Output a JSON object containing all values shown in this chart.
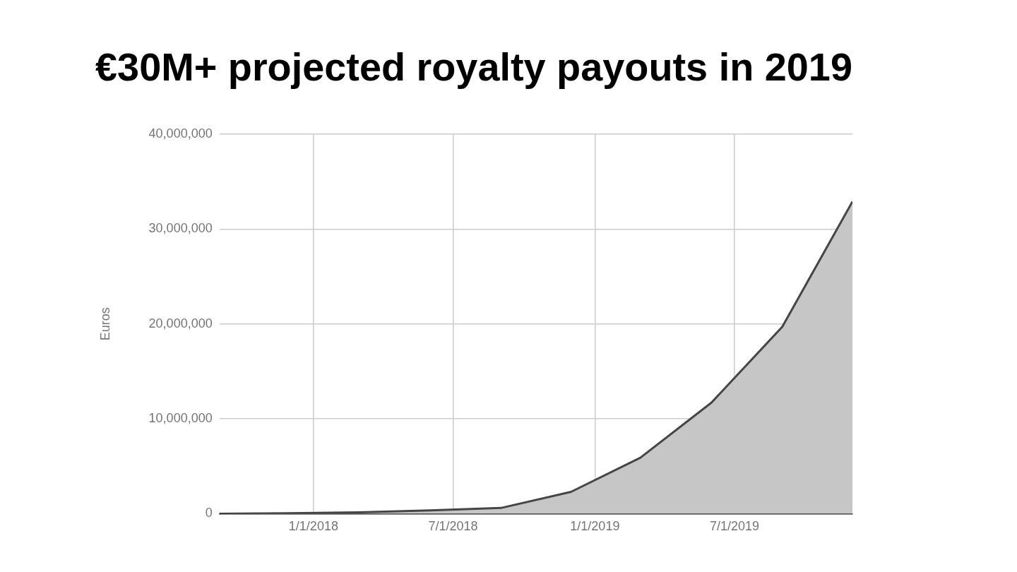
{
  "chart_data": {
    "type": "area",
    "title": "€30M+ projected royalty payouts in 2019",
    "ylabel": "Euros",
    "x": [
      "2017-09-01",
      "2017-12-01",
      "2018-03-01",
      "2018-06-01",
      "2018-09-01",
      "2018-12-01",
      "2019-03-01",
      "2019-06-01",
      "2019-09-01",
      "2019-12-01"
    ],
    "series": [
      {
        "color": "#c6c6c6",
        "values": [
          0,
          50000,
          150000,
          350000,
          600000,
          2300000,
          5900000,
          11700000,
          19700000,
          32900000
        ]
      }
    ],
    "xlim": [
      "2017-09-01",
      "2019-12-01"
    ],
    "xticks": [
      {
        "value": "2018-01-01",
        "label": "1/1/2018"
      },
      {
        "value": "2018-07-01",
        "label": "7/1/2018"
      },
      {
        "value": "2019-01-01",
        "label": "1/1/2019"
      },
      {
        "value": "2019-07-01",
        "label": "7/1/2019"
      }
    ],
    "ylim": [
      0,
      40000000
    ],
    "yticks": [
      0,
      {
        "value": 10000000,
        "label": "10,000,000"
      },
      {
        "value": 20000000,
        "label": "20,000,000"
      },
      {
        "value": 30000000,
        "label": "30,000,000"
      },
      {
        "value": 40000000,
        "label": "40,000,000"
      }
    ],
    "grid": true,
    "legend": false
  }
}
